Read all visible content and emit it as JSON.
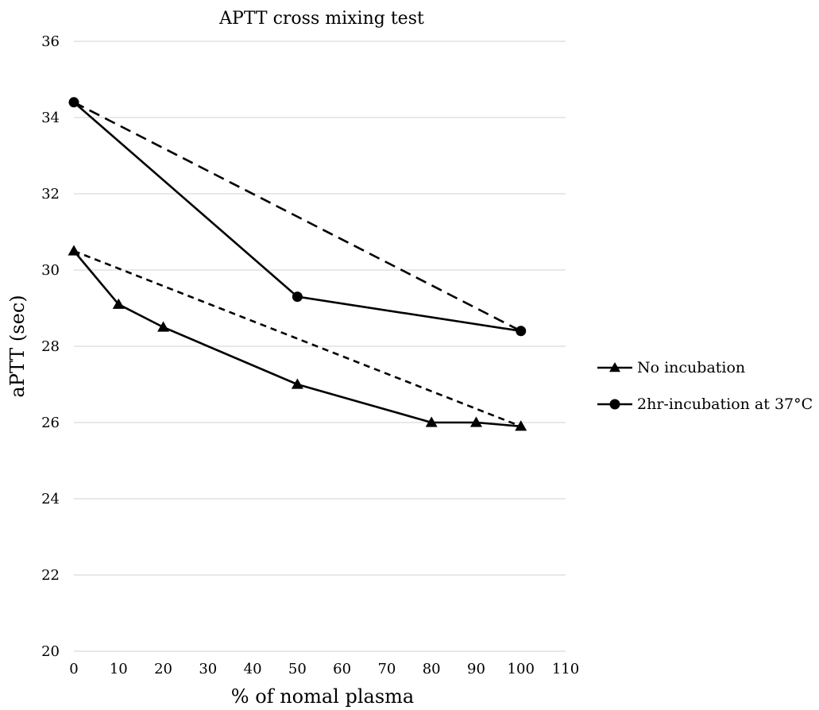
{
  "chart_data": {
    "type": "line",
    "title": "APTT cross mixing test",
    "xlabel": "% of nomal plasma",
    "ylabel": "aPTT (sec)",
    "xlim": [
      0,
      110
    ],
    "ylim": [
      20,
      36
    ],
    "xticks": [
      "0",
      "10",
      "20",
      "30",
      "40",
      "50",
      "60",
      "70",
      "80",
      "90",
      "100",
      "110"
    ],
    "yticks": [
      "20",
      "22",
      "24",
      "26",
      "28",
      "30",
      "32",
      "34",
      "36"
    ],
    "grid": "horizontal",
    "legend_position": "right",
    "series": [
      {
        "name": "No incubation",
        "marker": "triangle",
        "x": [
          0,
          10,
          20,
          50,
          80,
          90,
          100
        ],
        "y": [
          30.5,
          29.1,
          28.5,
          27.0,
          26.0,
          26.0,
          25.9
        ]
      },
      {
        "name": "2hr-incubation at 37°C",
        "marker": "circle",
        "x": [
          0,
          50,
          100
        ],
        "y": [
          34.4,
          29.3,
          28.4
        ]
      }
    ],
    "reference_lines": [
      {
        "style": "dashed",
        "x": [
          0,
          100
        ],
        "y": [
          30.5,
          25.9
        ]
      },
      {
        "style": "long-dashed",
        "x": [
          0,
          100
        ],
        "y": [
          34.4,
          28.4
        ]
      }
    ],
    "colors": {
      "line": "#000000",
      "grid": "#d9d9d9"
    }
  }
}
